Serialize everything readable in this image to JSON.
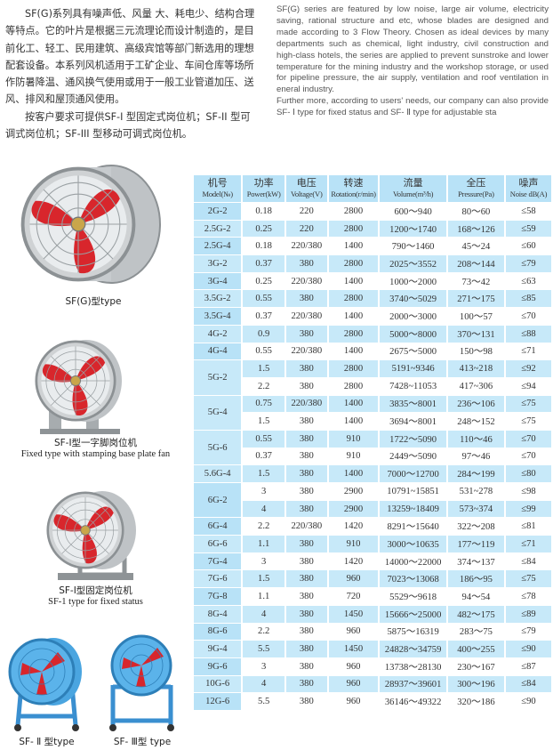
{
  "intro_cn": [
    "SF(G)系列具有噪声低、风量 大、耗电少、结构合理等特点。它的叶片是根据三元流理论而设计制造的，是目前化工、轻工、民用建筑、高级宾馆等部门新选用的理想配套设备。本系列风机适用于工矿企业、车间仓库等场所作防暑降温、通风换气使用或用于一般工业管道加压、送风、排风和屋顶通风使用。",
    "按客户要求可提供SF-I 型固定式岗位机；SF-II 型可调式岗位机；SF-III 型移动可调式岗位机。"
  ],
  "intro_en": [
    "SF(G) series are featured by low noise, large air volume, electricity saving, rational structure and etc, whose blades are designed and made according to 3 Flow Theory. Chosen as ideal devices by many departments such as chemical, light industry, civil construction and high-class hotels, the series are applied to prevent sunstroke and lower temperature for the mining industry and the workshop storage, or used for pipeline pressure, the air supply, ventilation and roof ventilation in eneral industry.",
    "Further more, according to users' needs, our company can also provide SF- Ⅰ type for fixed status and SF- Ⅱ type for adjustable sta"
  ],
  "figures": {
    "sfg": {
      "cn": "SF(G)型type"
    },
    "sf1_base": {
      "cn": "SF-I型一字脚岗位机",
      "en": "Fixed type with stamping base plate fan"
    },
    "sf1": {
      "cn": "SF-I型固定岗位机",
      "en": "SF-1  type for fixed status"
    },
    "sf2": {
      "cn": "SF- Ⅱ 型type"
    },
    "sf3": {
      "cn": "SF- Ⅲ型  type"
    }
  },
  "colors": {
    "header_bg": "#b8e2f7",
    "row_blue": "#c7e9f9",
    "fan_blade": "#d8262c"
  },
  "table": {
    "headers": [
      {
        "cn": "机号",
        "en": "Model(№)"
      },
      {
        "cn": "功率",
        "en": "Power(kW)"
      },
      {
        "cn": "电压",
        "en": "Voltage(V)"
      },
      {
        "cn": "转速",
        "en": "Rotation(r/min)"
      },
      {
        "cn": "流量",
        "en": "Volume(m³/h)"
      },
      {
        "cn": "全压",
        "en": "Pressure(Pa)"
      },
      {
        "cn": "噪声",
        "en": "Noise dB(A)"
      }
    ],
    "groups": [
      {
        "model": "2G-2",
        "rows": [
          [
            "0.18",
            "220",
            "2800",
            "600～940",
            "80～60",
            "≤58"
          ]
        ]
      },
      {
        "model": "2.5G-2",
        "rows": [
          [
            "0.25",
            "220",
            "2800",
            "1200～1740",
            "168～126",
            "≤59"
          ]
        ]
      },
      {
        "model": "2.5G-4",
        "rows": [
          [
            "0.18",
            "220/380",
            "1400",
            "790～1460",
            "45～24",
            "≤60"
          ]
        ]
      },
      {
        "model": "3G-2",
        "rows": [
          [
            "0.37",
            "380",
            "2800",
            "2025～3552",
            "208～144",
            "≤79"
          ]
        ]
      },
      {
        "model": "3G-4",
        "rows": [
          [
            "0.25",
            "220/380",
            "1400",
            "1000～2000",
            "73～42",
            "≤63"
          ]
        ]
      },
      {
        "model": "3.5G-2",
        "rows": [
          [
            "0.55",
            "380",
            "2800",
            "3740～5029",
            "271～175",
            "≤85"
          ]
        ]
      },
      {
        "model": "3.5G-4",
        "rows": [
          [
            "0.37",
            "220/380",
            "1400",
            "2000～3000",
            "100～57",
            "≤70"
          ]
        ]
      },
      {
        "model": "4G-2",
        "rows": [
          [
            "0.9",
            "380",
            "2800",
            "5000～8000",
            "370～131",
            "≤88"
          ]
        ]
      },
      {
        "model": "4G-4",
        "rows": [
          [
            "0.55",
            "220/380",
            "1400",
            "2675～5000",
            "150～98",
            "≤71"
          ]
        ]
      },
      {
        "model": "5G-2",
        "rows": [
          [
            "1.5",
            "380",
            "2800",
            "5191~9346",
            "413~218",
            "≤92"
          ],
          [
            "2.2",
            "380",
            "2800",
            "7428~11053",
            "417~306",
            "≤94"
          ]
        ]
      },
      {
        "model": "5G-4",
        "rows": [
          [
            "0.75",
            "220/380",
            "1400",
            "3835～8001",
            "236～106",
            "≤75"
          ],
          [
            "1.5",
            "380",
            "1400",
            "3694～8001",
            "248～152",
            "≤75"
          ]
        ]
      },
      {
        "model": "5G-6",
        "rows": [
          [
            "0.55",
            "380",
            "910",
            "1722～5090",
            "110～46",
            "≤70"
          ],
          [
            "0.37",
            "380",
            "910",
            "2449～5090",
            "97～46",
            "≤70"
          ]
        ]
      },
      {
        "model": "5.6G-4",
        "rows": [
          [
            "1.5",
            "380",
            "1400",
            "7000～12700",
            "284～199",
            "≤80"
          ]
        ]
      },
      {
        "model": "6G-2",
        "rows": [
          [
            "3",
            "380",
            "2900",
            "10791~15851",
            "531~278",
            "≤98"
          ],
          [
            "4",
            "380",
            "2900",
            "13259~18409",
            "573~374",
            "≤99"
          ]
        ]
      },
      {
        "model": "6G-4",
        "rows": [
          [
            "2.2",
            "220/380",
            "1420",
            "8291～15640",
            "322～208",
            "≤81"
          ]
        ]
      },
      {
        "model": "6G-6",
        "rows": [
          [
            "1.1",
            "380",
            "910",
            "3000～10635",
            "177～119",
            "≤71"
          ]
        ]
      },
      {
        "model": "7G-4",
        "rows": [
          [
            "3",
            "380",
            "1420",
            "14000～22000",
            "374～137",
            "≤84"
          ]
        ]
      },
      {
        "model": "7G-6",
        "rows": [
          [
            "1.5",
            "380",
            "960",
            "7023～13068",
            "186～95",
            "≤75"
          ]
        ]
      },
      {
        "model": "7G-8",
        "rows": [
          [
            "1.1",
            "380",
            "720",
            "5529～9618",
            "94～54",
            "≤78"
          ]
        ]
      },
      {
        "model": "8G-4",
        "rows": [
          [
            "4",
            "380",
            "1450",
            "15666～25000",
            "482～175",
            "≤89"
          ]
        ]
      },
      {
        "model": "8G-6",
        "rows": [
          [
            "2.2",
            "380",
            "960",
            "5875～16319",
            "283～75",
            "≤79"
          ]
        ]
      },
      {
        "model": "9G-4",
        "rows": [
          [
            "5.5",
            "380",
            "1450",
            "24828～34759",
            "400～255",
            "≤90"
          ]
        ]
      },
      {
        "model": "9G-6",
        "rows": [
          [
            "3",
            "380",
            "960",
            "13738～28130",
            "230～167",
            "≤87"
          ]
        ]
      },
      {
        "model": "10G-6",
        "rows": [
          [
            "4",
            "380",
            "960",
            "28937～39601",
            "300～196",
            "≤84"
          ]
        ]
      },
      {
        "model": "12G-6",
        "rows": [
          [
            "5.5",
            "380",
            "960",
            "36146～49322",
            "320～186",
            "≤90"
          ]
        ]
      }
    ]
  }
}
